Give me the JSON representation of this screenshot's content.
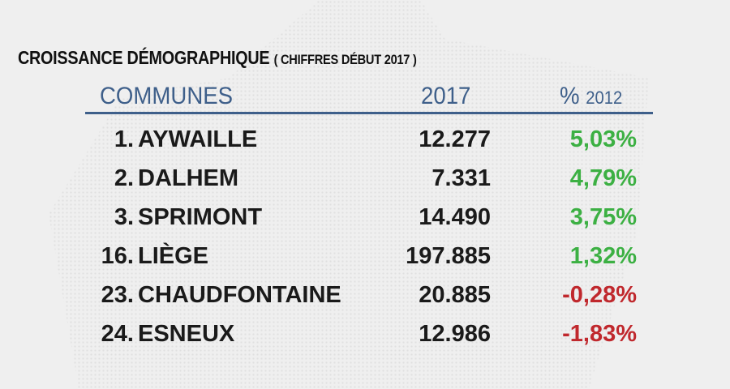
{
  "title": "CROISSANCE DÉMOGRAPHIQUE",
  "subtitle": "( CHIFFRES DÉBUT 2017 )",
  "colors": {
    "header": "#3e5f8a",
    "positive": "#3cb043",
    "negative": "#c0282d"
  },
  "chart_data": {
    "type": "table",
    "columns": [
      "COMMUNES",
      "2017",
      "%",
      "2012"
    ],
    "rows": [
      {
        "rank": "1.",
        "commune": "AYWAILLE",
        "pop_2017": "12.277",
        "pct_since_2012": "5,03%"
      },
      {
        "rank": "2.",
        "commune": "DALHEM",
        "pop_2017": "7.331",
        "pct_since_2012": "4,79%"
      },
      {
        "rank": "3.",
        "commune": "SPRIMONT",
        "pop_2017": "14.490",
        "pct_since_2012": "3,75%"
      },
      {
        "rank": "16.",
        "commune": "LIÈGE",
        "pop_2017": "197.885",
        "pct_since_2012": "1,32%"
      },
      {
        "rank": "23.",
        "commune": "CHAUDFONTAINE",
        "pop_2017": "20.885",
        "pct_since_2012": "-0,28%"
      },
      {
        "rank": "24.",
        "commune": "ESNEUX",
        "pop_2017": "12.986",
        "pct_since_2012": "-1,83%"
      }
    ]
  }
}
